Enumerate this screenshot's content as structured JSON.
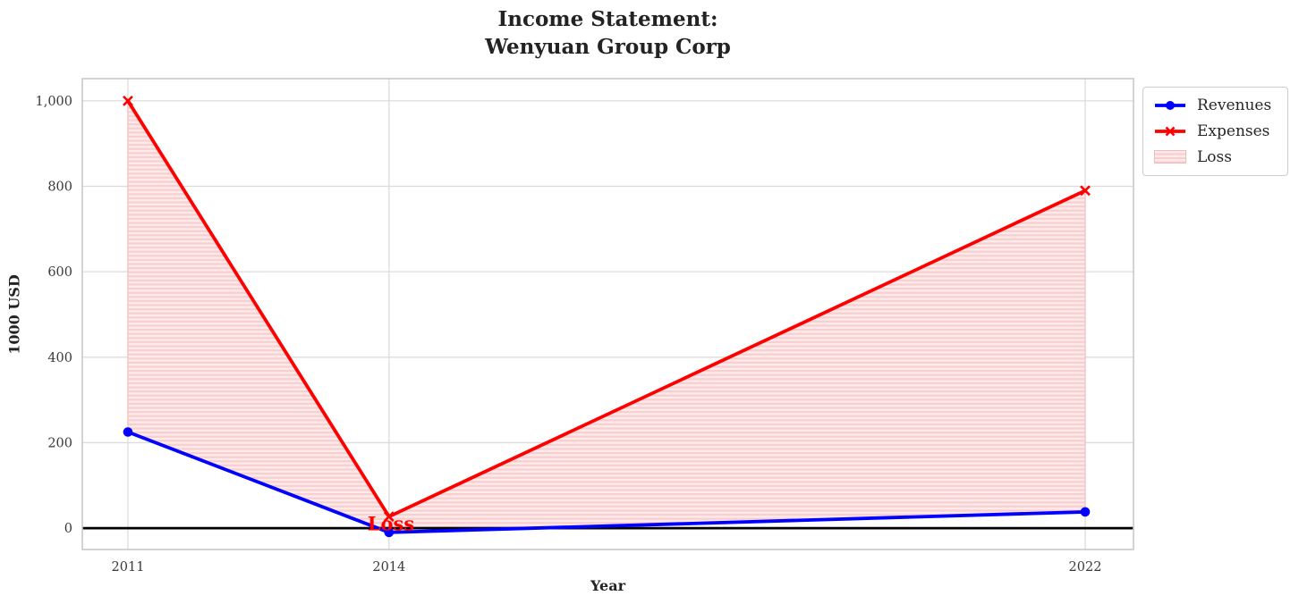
{
  "chart_data": {
    "type": "line",
    "title": "Income Statement:\nWenyuan Group Corp",
    "title_lines": [
      "Income Statement:",
      "Wenyuan Group Corp"
    ],
    "xlabel": "Year",
    "ylabel": "1000 USD",
    "x": [
      2011,
      2014,
      2022
    ],
    "series": [
      {
        "name": "Revenues",
        "color": "#0000ff",
        "marker": "circle",
        "values": [
          225,
          -10,
          38
        ]
      },
      {
        "name": "Expenses",
        "color": "#ff0000",
        "marker": "x",
        "values": [
          1000,
          27,
          790
        ]
      }
    ],
    "fill": {
      "label": "Loss",
      "between": [
        "Expenses",
        "Revenues"
      ],
      "color": "#fdeaea",
      "hatch": "horizontal",
      "hatch_color": "#f8cfcf",
      "edge_color": "#f3b9b9"
    },
    "annotation": {
      "text": "Loss",
      "x": 2014,
      "y": 0,
      "color": "#ff0000"
    },
    "x_ticks": [
      2011,
      2014,
      2022
    ],
    "x_tick_labels": [
      "2011",
      "2014",
      "2022"
    ],
    "y_ticks": [
      0,
      200,
      400,
      600,
      800,
      1000
    ],
    "y_tick_labels": [
      "0",
      "200",
      "400",
      "600",
      "800",
      "1,000"
    ],
    "xlim": [
      2010.476,
      2022.555
    ],
    "ylim": [
      -50,
      1052
    ],
    "zero_line": true,
    "zero_line_color": "#000000",
    "grid": true,
    "grid_color": "#dcdcdc",
    "spine_color": "#c8c8c8",
    "legend_position": "outside-top-right"
  },
  "legend": {
    "items": [
      {
        "label": "Revenues",
        "swatch": "line-circle",
        "color": "#0000ff"
      },
      {
        "label": "Expenses",
        "swatch": "line-x",
        "color": "#ff0000"
      },
      {
        "label": "Loss",
        "swatch": "patch-hatch",
        "color": "#fdeaea",
        "hatch_color": "#f8cfcf"
      }
    ]
  }
}
